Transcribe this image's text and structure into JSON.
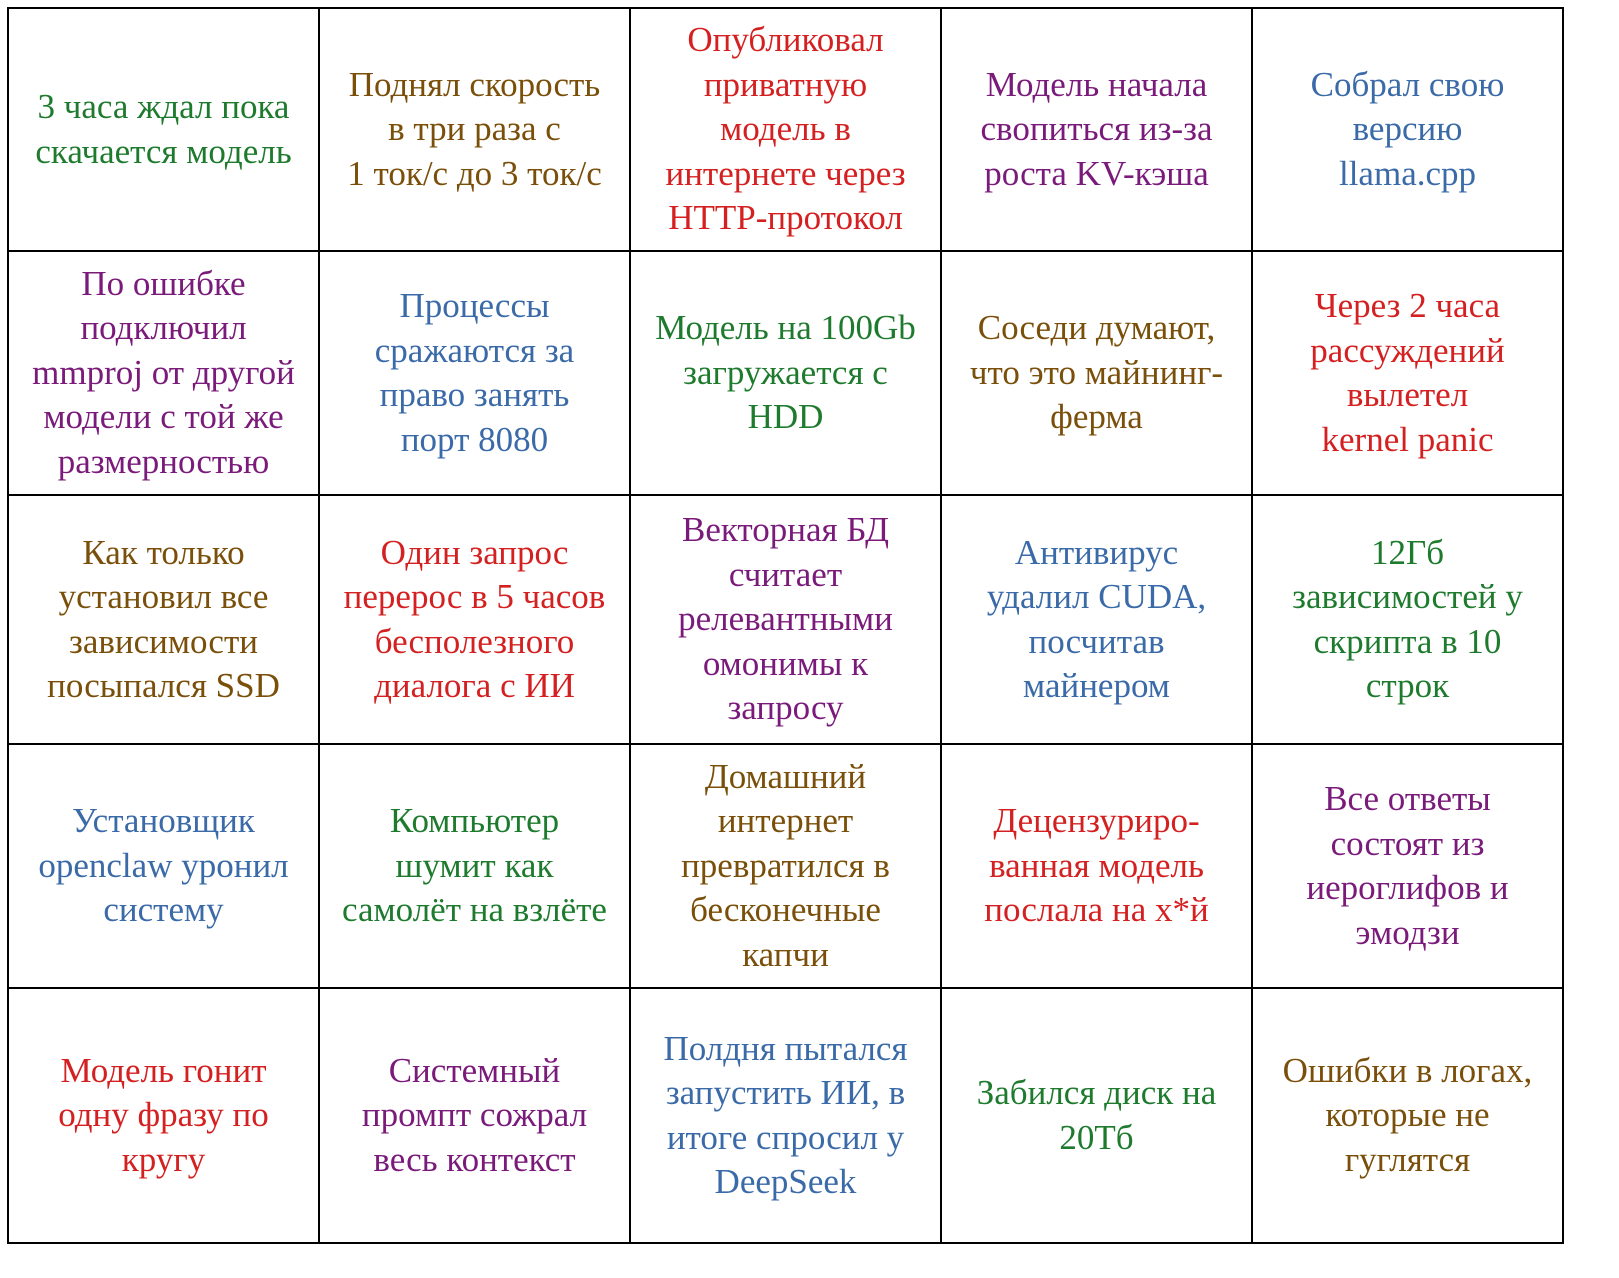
{
  "table": {
    "rows": [
      [
        {
          "lines": [
            "3 часа ждал пока",
            "скачается модель"
          ],
          "color": "#1e7b2e"
        },
        {
          "lines": [
            "Поднял скорость",
            "в три раза с",
            "1 ток/с до 3 ток/с"
          ],
          "color": "#7a4f0a"
        },
        {
          "lines": [
            "Опубликовал",
            "приватную",
            "модель в",
            "интернете через",
            "HTTP-протокол"
          ],
          "color": "#d42020"
        },
        {
          "lines": [
            "Модель начала",
            "свопиться из-за",
            "роста KV-кэша"
          ],
          "color": "#7a1a7a"
        },
        {
          "lines": [
            "Собрал свою",
            "версию",
            "llama.cpp"
          ],
          "color": "#3a6aa8"
        }
      ],
      [
        {
          "lines": [
            "По ошибке",
            "подключил",
            "mmproj от другой",
            "модели с той же",
            "размерностью"
          ],
          "color": "#7a1a7a"
        },
        {
          "lines": [
            "Процессы",
            "сражаются за",
            "право занять",
            "порт 8080"
          ],
          "color": "#3a6aa8"
        },
        {
          "lines": [
            "Модель на 100Gb",
            "загружается с",
            "HDD"
          ],
          "color": "#1e7b2e"
        },
        {
          "lines": [
            "Соседи думают,",
            "что это майнинг-",
            "ферма"
          ],
          "color": "#7a4f0a"
        },
        {
          "lines": [
            "Через 2 часа",
            "рассуждений",
            "вылетел",
            "kernel panic"
          ],
          "color": "#d42020"
        }
      ],
      [
        {
          "lines": [
            "Как только",
            "установил все",
            "зависимости",
            "посыпался SSD"
          ],
          "color": "#7a4f0a"
        },
        {
          "lines": [
            "Один запрос",
            "перерос в 5 часов",
            "бесполезного",
            "диалога с ИИ"
          ],
          "color": "#d42020"
        },
        {
          "lines": [
            "Векторная БД",
            "считает",
            "релевантными",
            "омонимы к",
            "запросу"
          ],
          "color": "#7a1a7a"
        },
        {
          "lines": [
            "Антивирус",
            "удалил CUDA,",
            "посчитав",
            "майнером"
          ],
          "color": "#3a6aa8"
        },
        {
          "lines": [
            "12Гб",
            "зависимостей у",
            "скрипта в 10",
            "строк"
          ],
          "color": "#1e7b2e"
        }
      ],
      [
        {
          "lines": [
            "Установщик",
            "openclaw уронил",
            "систему"
          ],
          "color": "#3a6aa8"
        },
        {
          "lines": [
            "Компьютер",
            "шумит как",
            "самолёт на взлёте"
          ],
          "color": "#1e7b2e"
        },
        {
          "lines": [
            "Домашний",
            "интернет",
            "превратился в",
            "бесконечные",
            "капчи"
          ],
          "color": "#7a4f0a"
        },
        {
          "lines": [
            "Децензуриро-",
            "ванная модель",
            "послала на х*й"
          ],
          "color": "#d42020"
        },
        {
          "lines": [
            "Все ответы",
            "состоят из",
            "иероглифов и",
            "эмодзи"
          ],
          "color": "#7a1a7a"
        }
      ],
      [
        {
          "lines": [
            "Модель гонит",
            "одну фразу по",
            "кругу"
          ],
          "color": "#d42020"
        },
        {
          "lines": [
            "Системный",
            "промпт сожрал",
            "весь контекст"
          ],
          "color": "#7a1a7a"
        },
        {
          "lines": [
            "Полдня пытался",
            "запустить ИИ, в",
            "итоге спросил у",
            "DeepSeek"
          ],
          "color": "#3a6aa8"
        },
        {
          "lines": [
            "Забился диск на",
            "20Тб"
          ],
          "color": "#1e7b2e"
        },
        {
          "lines": [
            "Ошибки в логах,",
            "которые не",
            "гуглятся"
          ],
          "color": "#7a4f0a"
        }
      ]
    ]
  }
}
